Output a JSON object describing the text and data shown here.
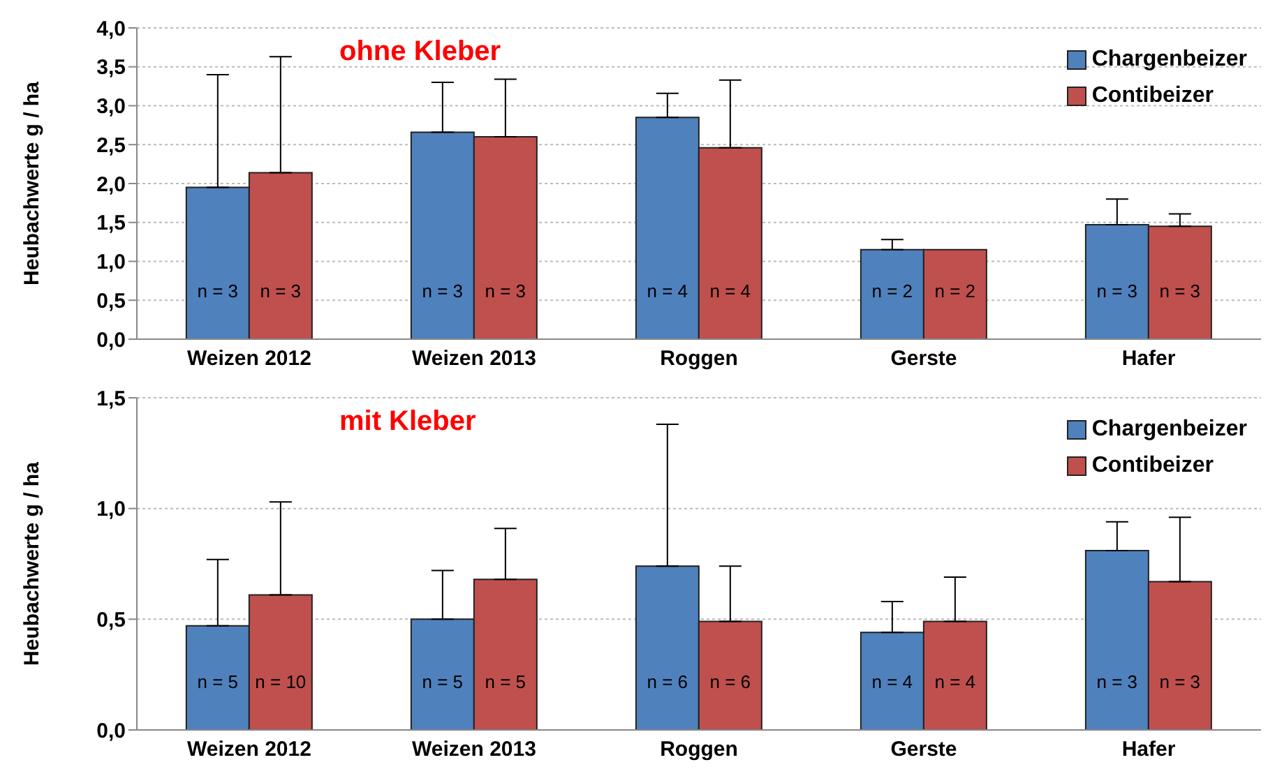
{
  "chart_data": [
    {
      "type": "bar",
      "title": "ohne Kleber",
      "ylabel": "Heubachwerte g / ha",
      "categories": [
        "Weizen 2012",
        "Weizen 2013",
        "Roggen",
        "Gerste",
        "Hafer"
      ],
      "series": [
        {
          "name": "Chargenbeizer",
          "color": "#4f81bd",
          "values": [
            1.95,
            2.66,
            2.85,
            1.15,
            1.47
          ],
          "errors": [
            [
              1.95,
              3.4
            ],
            [
              2.66,
              3.3
            ],
            [
              2.85,
              3.16
            ],
            [
              1.15,
              1.28
            ],
            [
              1.47,
              1.8
            ]
          ]
        },
        {
          "name": "Contibeizer",
          "color": "#c0504d",
          "values": [
            2.14,
            2.6,
            2.46,
            1.15,
            1.45
          ],
          "errors": [
            [
              2.14,
              3.63
            ],
            [
              2.6,
              3.34
            ],
            [
              2.46,
              3.33
            ],
            null,
            [
              1.45,
              1.61
            ]
          ]
        }
      ],
      "annotations": [
        "n = 3",
        "n = 3",
        "n = 3",
        "n = 3",
        "n = 4",
        "n = 4",
        "n = 2",
        "n = 2",
        "n = 3",
        "n = 3"
      ],
      "ylim": [
        0,
        4
      ],
      "yticks": [
        {
          "value": 0,
          "label": "0,0"
        },
        {
          "value": 0.5,
          "label": "0,5"
        },
        {
          "value": 1,
          "label": "1,0"
        },
        {
          "value": 1.5,
          "label": "1,5"
        },
        {
          "value": 2,
          "label": "2,0"
        },
        {
          "value": 2.5,
          "label": "2,5"
        },
        {
          "value": 3,
          "label": "3,0"
        },
        {
          "value": 3.5,
          "label": "3,5"
        },
        {
          "value": 4,
          "label": "4,0"
        }
      ],
      "grid": "y",
      "legend": "top right"
    },
    {
      "type": "bar",
      "title": "mit Kleber",
      "ylabel": "Heubachwerte g / ha",
      "categories": [
        "Weizen 2012",
        "Weizen 2013",
        "Roggen",
        "Gerste",
        "Hafer"
      ],
      "series": [
        {
          "name": "Chargenbeizer",
          "color": "#4f81bd",
          "values": [
            0.47,
            0.5,
            0.74,
            0.44,
            0.81
          ],
          "errors": [
            [
              0.47,
              0.77
            ],
            [
              0.5,
              0.72
            ],
            [
              0.74,
              1.38
            ],
            [
              0.44,
              0.58
            ],
            [
              0.81,
              0.94
            ]
          ]
        },
        {
          "name": "Contibeizer",
          "color": "#c0504d",
          "values": [
            0.61,
            0.68,
            0.49,
            0.49,
            0.67
          ],
          "errors": [
            [
              0.61,
              1.03
            ],
            [
              0.68,
              0.91
            ],
            [
              0.49,
              0.74
            ],
            [
              0.49,
              0.69
            ],
            [
              0.67,
              0.96
            ]
          ]
        }
      ],
      "annotations": [
        "n = 5",
        "n = 10",
        "n = 5",
        "n = 5",
        "n = 6",
        "n = 6",
        "n = 4",
        "n = 4",
        "n = 3",
        "n = 3"
      ],
      "ylim": [
        0,
        1.5
      ],
      "yticks": [
        {
          "value": 0,
          "label": "0,0"
        },
        {
          "value": 0.5,
          "label": "0,5"
        },
        {
          "value": 1,
          "label": "1,0"
        },
        {
          "value": 1.5,
          "label": "1,5"
        }
      ],
      "grid": "y",
      "legend": "top right"
    }
  ]
}
